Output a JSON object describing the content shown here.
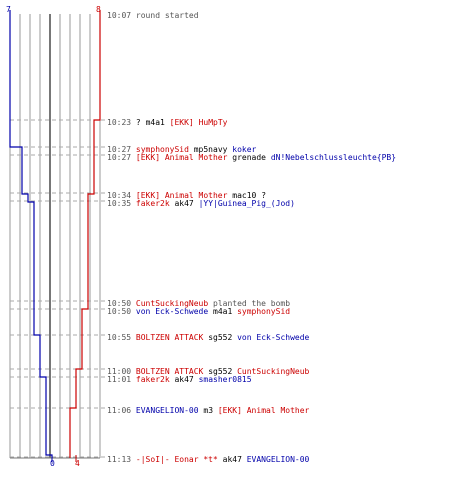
{
  "scores": {
    "blue_start": "7",
    "red_start": "8",
    "blue_end": "0",
    "red_end": "4"
  },
  "colors": {
    "team_red": "#cc0000",
    "team_blue": "#0000aa",
    "grid": "#999999",
    "event_dash": "#aaaaaa"
  },
  "events": [
    {
      "time": "10:07",
      "text": "round started"
    },
    {
      "time": "10:23",
      "prefix": "?",
      "weapon": "m4a1",
      "victim": "[EKK] HuMpTy",
      "victim_team": "red"
    },
    {
      "time": "10:27",
      "killer": "symphonySid",
      "killer_team": "red",
      "weapon": "mp5navy",
      "victim": "koker",
      "victim_team": "blue"
    },
    {
      "time": "10:27",
      "killer": "[EKK] Animal Mother",
      "killer_team": "red",
      "weapon": "grenade",
      "victim": "dN!Nebelschlussleuchte{PB}",
      "victim_team": "blue"
    },
    {
      "time": "10:34",
      "killer": "[EKK] Animal Mother",
      "killer_team": "red",
      "weapon": "mac10",
      "victim": "?",
      "victim_team": "blk"
    },
    {
      "time": "10:35",
      "killer": "faker2k",
      "killer_team": "red",
      "weapon": "ak47",
      "victim": "|YY|Guinea_Pig_(Jod)",
      "victim_team": "blue"
    },
    {
      "time": "10:50",
      "killer": "CuntSuckingNeub",
      "killer_team": "red",
      "weapon": "planted the bomb"
    },
    {
      "time": "10:50",
      "killer": "von Eck-Schwede",
      "killer_team": "blue",
      "weapon": "m4a1",
      "victim": "symphonySid",
      "victim_team": "red"
    },
    {
      "time": "10:55",
      "killer": "BOLTZEN ATTACK",
      "killer_team": "red",
      "weapon": "sg552",
      "victim": "von Eck-Schwede",
      "victim_team": "blue"
    },
    {
      "time": "11:00",
      "killer": "BOLTZEN ATTACK",
      "killer_team": "red",
      "weapon": "sg552",
      "victim": "CuntSuckingNeub",
      "victim_team": "red"
    },
    {
      "time": "11:01",
      "killer": "faker2k",
      "killer_team": "red",
      "weapon": "ak47",
      "victim": "smasher0815",
      "victim_team": "blue"
    },
    {
      "time": "11:06",
      "killer": "EVANGELION-00",
      "killer_team": "blue",
      "weapon": "m3",
      "victim": "[EKK] Animal Mother",
      "victim_team": "red"
    },
    {
      "time": "11:13",
      "killer": "-|SoI|- Eonar *t*",
      "killer_team": "red",
      "weapon": "ak47",
      "victim": "EVANGELION-00",
      "victim_team": "blue"
    }
  ]
}
